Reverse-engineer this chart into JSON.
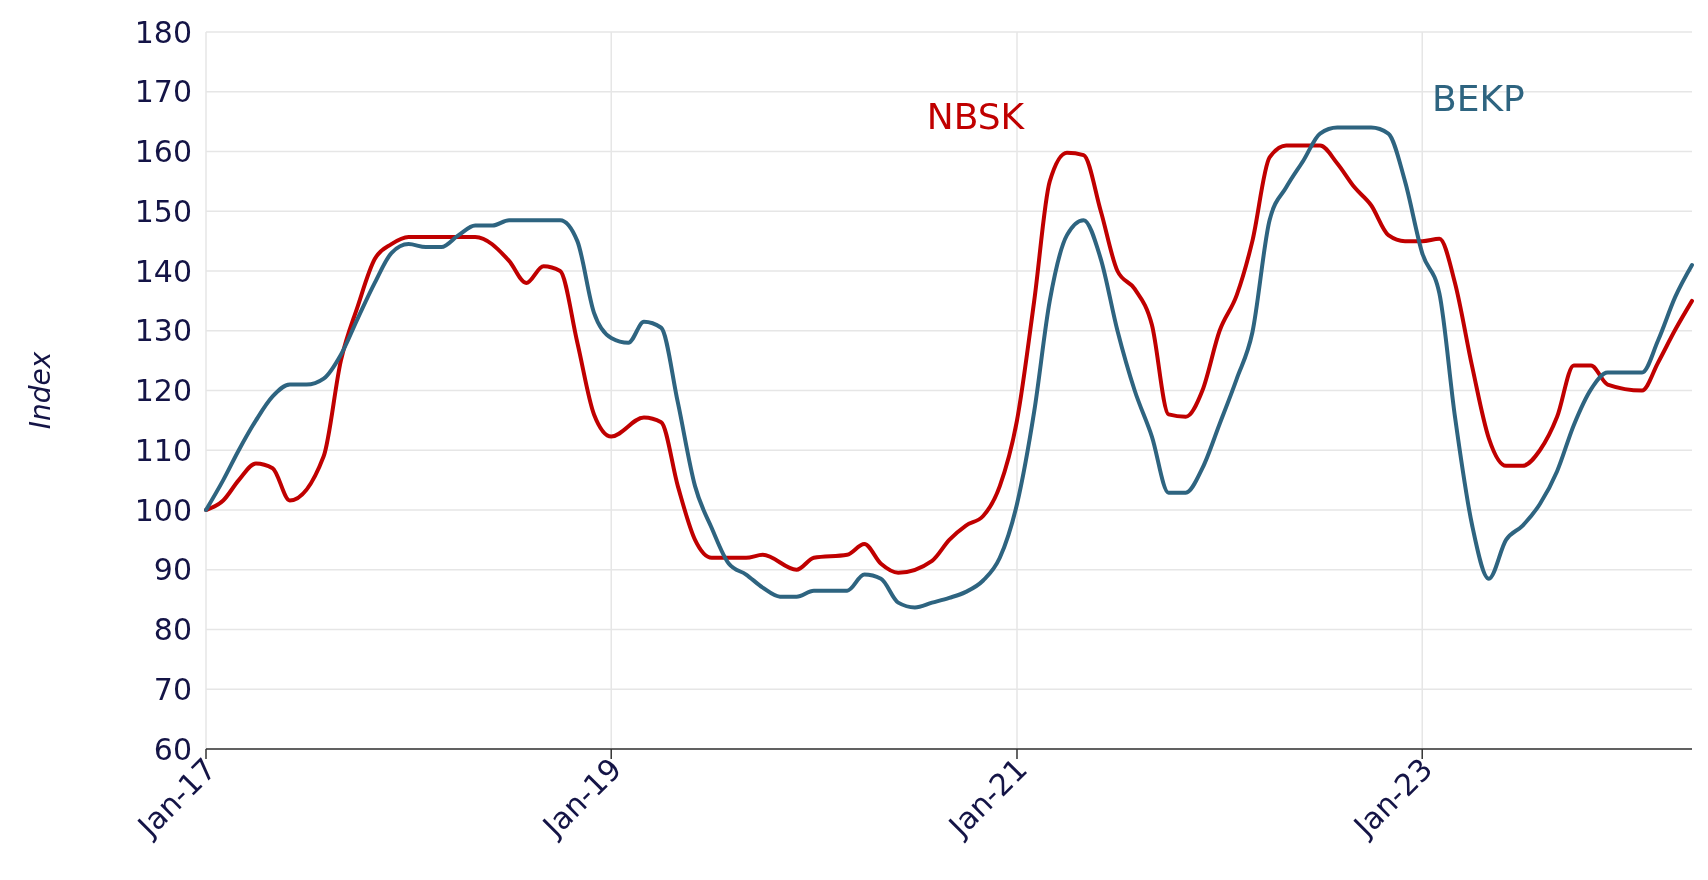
{
  "chart_data": {
    "type": "line",
    "ylabel": "Index",
    "xlim": [
      "2017-01",
      "2024-05"
    ],
    "xticks": [
      {
        "value": "2017-01",
        "label": "Jan-17"
      },
      {
        "value": "2019-01",
        "label": "Jan-19"
      },
      {
        "value": "2021-01",
        "label": "Jan-21"
      },
      {
        "value": "2023-01",
        "label": "Jan-23"
      }
    ],
    "ylim": [
      60,
      180
    ],
    "yticks": [
      60,
      70,
      80,
      90,
      100,
      110,
      120,
      130,
      140,
      150,
      160,
      170,
      180
    ],
    "grid": true,
    "marker": "none",
    "line_style": "solid",
    "series": [
      {
        "name": "NBSK",
        "color": "#c00000",
        "x": [
          "2017-01",
          "2017-02",
          "2017-03",
          "2017-04",
          "2017-05",
          "2017-06",
          "2017-08",
          "2017-09",
          "2017-10",
          "2017-11",
          "2017-12",
          "2018-01",
          "2018-05",
          "2018-07",
          "2018-08",
          "2018-09",
          "2018-10",
          "2018-11",
          "2018-12",
          "2019-01",
          "2019-03",
          "2019-04",
          "2019-05",
          "2019-06",
          "2019-07",
          "2019-09",
          "2019-10",
          "2019-12",
          "2020-01",
          "2020-03",
          "2020-04",
          "2020-05",
          "2020-06",
          "2020-08",
          "2020-09",
          "2020-10",
          "2020-11",
          "2020-12",
          "2021-01",
          "2021-02",
          "2021-03",
          "2021-04",
          "2021-05",
          "2021-06",
          "2021-07",
          "2021-08",
          "2021-09",
          "2021-10",
          "2021-11",
          "2021-12",
          "2022-01",
          "2022-02",
          "2022-03",
          "2022-04",
          "2022-05",
          "2022-07",
          "2022-08",
          "2022-09",
          "2022-10",
          "2022-11",
          "2022-12",
          "2023-01",
          "2023-02",
          "2023-03",
          "2023-04",
          "2023-05",
          "2023-06",
          "2023-07",
          "2023-08",
          "2023-09",
          "2023-10",
          "2023-11",
          "2023-12",
          "2024-02",
          "2024-03",
          "2024-04",
          "2024-05"
        ],
        "values": [
          100,
          101.6,
          105,
          107.8,
          107,
          101.6,
          109,
          125,
          134,
          142,
          144.5,
          145.7,
          145.7,
          141.7,
          138,
          140.8,
          140,
          128,
          116,
          112.3,
          115.5,
          114.7,
          104,
          95,
          92,
          92,
          92.5,
          90,
          92,
          92.5,
          94.3,
          91,
          89.5,
          91.5,
          95,
          97.4,
          99,
          104,
          115,
          135,
          155,
          159.8,
          159.4,
          150,
          140,
          137,
          131,
          116,
          115.6,
          120,
          130,
          136,
          145,
          159,
          161,
          161,
          158,
          154,
          151,
          146,
          145,
          145,
          145.4,
          138,
          124,
          112,
          107.4,
          107.4,
          110,
          115.6,
          124.2,
          124.2,
          121,
          120,
          124.7,
          130.2,
          135
        ]
      },
      {
        "name": "BEKP",
        "color": "#2e6480",
        "x": [
          "2017-01",
          "2017-02",
          "2017-03",
          "2017-04",
          "2017-05",
          "2017-06",
          "2017-07",
          "2017-08",
          "2017-09",
          "2017-10",
          "2017-11",
          "2017-12",
          "2018-01",
          "2018-02",
          "2018-03",
          "2018-04",
          "2018-05",
          "2018-06",
          "2018-07",
          "2018-10",
          "2018-11",
          "2018-12",
          "2019-01",
          "2019-02",
          "2019-03",
          "2019-04",
          "2019-05",
          "2019-06",
          "2019-07",
          "2019-08",
          "2019-09",
          "2019-10",
          "2019-11",
          "2019-12",
          "2020-01",
          "2020-03",
          "2020-04",
          "2020-05",
          "2020-06",
          "2020-07",
          "2020-08",
          "2020-09",
          "2020-10",
          "2020-11",
          "2020-12",
          "2021-01",
          "2021-02",
          "2021-03",
          "2021-04",
          "2021-05",
          "2021-06",
          "2021-07",
          "2021-08",
          "2021-09",
          "2021-10",
          "2021-11",
          "2021-12",
          "2022-01",
          "2022-02",
          "2022-03",
          "2022-04",
          "2022-05",
          "2022-06",
          "2022-07",
          "2022-08",
          "2022-10",
          "2022-11",
          "2022-12",
          "2023-01",
          "2023-02",
          "2023-03",
          "2023-04",
          "2023-05",
          "2023-06",
          "2023-07",
          "2023-08",
          "2023-09",
          "2023-10",
          "2023-11",
          "2023-12",
          "2024-02",
          "2024-03",
          "2024-04",
          "2024-05"
        ],
        "values": [
          100,
          105,
          110,
          115,
          119,
          121,
          121,
          122,
          126,
          132,
          138,
          143,
          144.5,
          144,
          144,
          146,
          147.6,
          147.6,
          148.5,
          148.5,
          145,
          133,
          128.8,
          128,
          131.5,
          130.5,
          118,
          104,
          97,
          91,
          89.2,
          87,
          85.5,
          85.5,
          86.5,
          86.5,
          89.2,
          88.5,
          84.5,
          83.7,
          84.5,
          85.3,
          86.3,
          88.2,
          92,
          101,
          116.5,
          135,
          146,
          148.5,
          142,
          130,
          120,
          112.3,
          102.9,
          102.9,
          107,
          114.4,
          122,
          129.7,
          148.5,
          154,
          158.5,
          163,
          164,
          164,
          163,
          155,
          143,
          136.2,
          115.6,
          97.4,
          88.5,
          95,
          97.4,
          101,
          106.5,
          114.2,
          120.2,
          123,
          123,
          128.4,
          135.7,
          141
        ]
      }
    ]
  }
}
